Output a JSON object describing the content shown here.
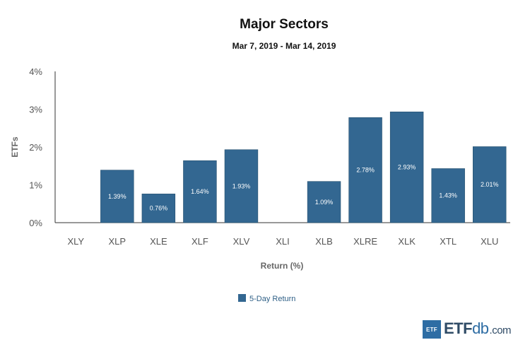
{
  "chart_data": {
    "type": "bar",
    "title": "Major Sectors",
    "subtitle": "Mar 7, 2019 - Mar 14, 2019",
    "xlabel": "Return (%)",
    "ylabel": "ETFs",
    "ylim": [
      0,
      4
    ],
    "yticks": [
      "0%",
      "1%",
      "2%",
      "3%",
      "4%"
    ],
    "categories": [
      "XLY",
      "XLP",
      "XLE",
      "XLF",
      "XLV",
      "XLI",
      "XLB",
      "XLRE",
      "XLK",
      "XTL",
      "XLU"
    ],
    "series": [
      {
        "name": "5-Day Return",
        "color": "#336791",
        "values": [
          null,
          1.39,
          0.76,
          1.64,
          1.93,
          null,
          1.09,
          2.78,
          2.93,
          1.43,
          2.01
        ],
        "labels": [
          "",
          "1.39%",
          "0.76%",
          "1.64%",
          "1.93%",
          "",
          "1.09%",
          "2.78%",
          "2.93%",
          "1.43%",
          "2.01%"
        ]
      }
    ],
    "legend": "bottom-center"
  },
  "logo": {
    "box": "ETF",
    "main": "ETF",
    "accent": "db",
    "suffix": ".com"
  }
}
